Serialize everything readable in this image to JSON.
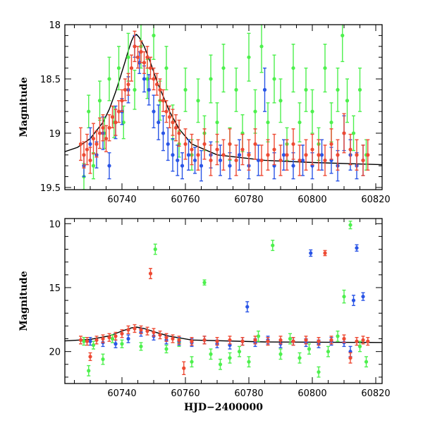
{
  "chart_data": [
    {
      "type": "scatter",
      "title": "",
      "xlabel": "",
      "ylabel": "Magnitude",
      "xlim": [
        60722,
        60822
      ],
      "ylim": [
        18.0,
        19.52
      ],
      "y_inverted": true,
      "grid": false,
      "xticks_major": [
        60740,
        60760,
        60780,
        60800,
        60820
      ],
      "xtick_labels": [
        "60740",
        "60760",
        "60780",
        "60800",
        "60820"
      ],
      "xticks_minor_step": 5,
      "yticks_major": [
        18,
        18.5,
        19,
        19.5
      ],
      "ytick_labels": [
        "18",
        "18.5",
        "19",
        "19.5"
      ],
      "yticks_minor_step": 0.1,
      "model_curve": {
        "color": "#000000",
        "x": [
          60722,
          60726,
          60730,
          60734,
          60736,
          60738,
          60739.5,
          60741,
          60742,
          60743,
          60743.8,
          60744.6,
          60745.5,
          60747,
          60749,
          60751,
          60753,
          60755,
          60758,
          60762,
          60770,
          60785,
          60800,
          60822
        ],
        "y": [
          19.17,
          19.13,
          19.05,
          18.9,
          18.78,
          18.62,
          18.48,
          18.34,
          18.24,
          18.15,
          18.1,
          18.09,
          18.12,
          18.2,
          18.35,
          18.52,
          18.66,
          18.8,
          18.96,
          19.1,
          19.2,
          19.25,
          19.27,
          19.29
        ]
      },
      "series": [
        {
          "color": "#4df04d",
          "x": [
            60728,
            60729.5,
            60731,
            60733,
            60734.5,
            60736,
            60737.5,
            60739,
            60740.5,
            60742,
            60744,
            60746,
            60748,
            60750,
            60752,
            60754,
            60756,
            60758,
            60760,
            60762,
            60764,
            60766,
            60768,
            60770,
            60772,
            60774,
            60776,
            60778,
            60780,
            60782,
            60784,
            60786,
            60788,
            60790,
            60792,
            60794,
            60796,
            60798,
            60800,
            60802,
            60804,
            60806,
            60808,
            60809.5,
            60811,
            60813,
            60815,
            60817
          ],
          "y": [
            19.4,
            18.8,
            19.3,
            18.7,
            19.0,
            18.5,
            18.9,
            18.4,
            18.9,
            18.3,
            18.6,
            18.2,
            18.5,
            18.1,
            18.7,
            18.4,
            18.9,
            19.1,
            18.6,
            19.2,
            18.7,
            19.0,
            18.5,
            18.9,
            18.4,
            19.1,
            18.6,
            19.0,
            18.3,
            18.8,
            18.2,
            18.9,
            18.5,
            18.7,
            19.1,
            18.4,
            18.9,
            18.6,
            18.8,
            19.1,
            18.4,
            18.9,
            18.6,
            18.1,
            18.7,
            19.0,
            18.6,
            19.2
          ],
          "yerr": [
            0.12,
            0.15,
            0.12,
            0.18,
            0.14,
            0.2,
            0.14,
            0.2,
            0.15,
            0.22,
            0.18,
            0.2,
            0.18,
            0.22,
            0.18,
            0.2,
            0.16,
            0.12,
            0.2,
            0.14,
            0.2,
            0.16,
            0.22,
            0.18,
            0.22,
            0.15,
            0.2,
            0.17,
            0.22,
            0.2,
            0.24,
            0.18,
            0.22,
            0.2,
            0.15,
            0.22,
            0.18,
            0.2,
            0.2,
            0.15,
            0.22,
            0.18,
            0.2,
            0.24,
            0.2,
            0.16,
            0.2,
            0.14
          ]
        },
        {
          "color": "#2a55e6",
          "x": [
            60728,
            60730,
            60732,
            60734,
            60736,
            60738,
            60740,
            60742,
            60744,
            60745.5,
            60747,
            60748.5,
            60750,
            60751.5,
            60753,
            60754.5,
            60756,
            60757.5,
            60759,
            60761,
            60763,
            60765,
            60768,
            60771,
            60774,
            60777,
            60780,
            60783,
            60785,
            60788,
            60791,
            60794,
            60797,
            60800,
            60803,
            60806,
            60808,
            60810,
            60812,
            60814,
            60816
          ],
          "y": [
            19.3,
            19.1,
            19.2,
            19.0,
            19.3,
            18.9,
            18.8,
            18.6,
            18.2,
            18.35,
            18.5,
            18.6,
            18.8,
            18.9,
            19.0,
            19.1,
            19.2,
            19.25,
            19.3,
            19.2,
            19.25,
            19.3,
            19.2,
            19.25,
            19.3,
            19.2,
            19.3,
            19.25,
            18.6,
            19.3,
            19.2,
            19.3,
            19.25,
            19.3,
            19.2,
            19.25,
            19.3,
            19.0,
            19.2,
            19.3,
            19.25
          ],
          "yerr": [
            0.1,
            0.15,
            0.12,
            0.15,
            0.12,
            0.15,
            0.12,
            0.12,
            0.1,
            0.1,
            0.12,
            0.14,
            0.15,
            0.16,
            0.16,
            0.15,
            0.15,
            0.14,
            0.12,
            0.14,
            0.12,
            0.14,
            0.12,
            0.14,
            0.12,
            0.14,
            0.12,
            0.14,
            0.2,
            0.12,
            0.14,
            0.12,
            0.14,
            0.12,
            0.14,
            0.12,
            0.14,
            0.16,
            0.14,
            0.12,
            0.14
          ]
        },
        {
          "color": "#ee4a33",
          "x": [
            60727,
            60728,
            60729,
            60730,
            60731,
            60732,
            60733,
            60734,
            60735,
            60736,
            60737,
            60738,
            60739,
            60740,
            60741,
            60742,
            60743,
            60744,
            60745,
            60746,
            60747,
            60748,
            60749,
            60750,
            60751,
            60752,
            60753,
            60754,
            60755,
            60756,
            60757,
            60758,
            60760,
            60762,
            60764,
            60766,
            60768,
            60770,
            60772,
            60774,
            60776,
            60778,
            60780,
            60782,
            60784,
            60786,
            60788,
            60790,
            60792,
            60794,
            60796,
            60798,
            60800,
            60802,
            60804,
            60806,
            60808,
            60810,
            60812,
            60814,
            60816,
            60817.5
          ],
          "y": [
            19.1,
            19.2,
            19.15,
            19.25,
            19.05,
            19.1,
            19.0,
            18.95,
            19.05,
            18.95,
            18.85,
            18.9,
            18.8,
            18.7,
            18.6,
            18.55,
            18.4,
            18.2,
            18.3,
            18.25,
            18.35,
            18.3,
            18.4,
            18.5,
            18.55,
            18.6,
            18.7,
            18.8,
            18.85,
            18.9,
            18.95,
            19.0,
            19.1,
            19.15,
            19.2,
            19.1,
            19.25,
            19.15,
            19.2,
            19.1,
            19.25,
            19.15,
            19.2,
            19.1,
            19.25,
            19.2,
            19.15,
            19.25,
            19.2,
            19.1,
            19.25,
            19.2,
            19.15,
            19.2,
            19.25,
            19.1,
            19.2,
            19.0,
            19.15,
            19.2,
            19.25,
            19.2
          ],
          "yerr": [
            0.15,
            0.12,
            0.14,
            0.12,
            0.14,
            0.12,
            0.14,
            0.12,
            0.12,
            0.12,
            0.1,
            0.12,
            0.1,
            0.1,
            0.1,
            0.1,
            0.12,
            0.14,
            0.1,
            0.1,
            0.1,
            0.1,
            0.1,
            0.1,
            0.1,
            0.1,
            0.1,
            0.1,
            0.1,
            0.12,
            0.12,
            0.12,
            0.14,
            0.14,
            0.14,
            0.14,
            0.14,
            0.14,
            0.14,
            0.14,
            0.14,
            0.14,
            0.14,
            0.14,
            0.14,
            0.14,
            0.14,
            0.14,
            0.14,
            0.14,
            0.14,
            0.14,
            0.14,
            0.14,
            0.14,
            0.14,
            0.14,
            0.18,
            0.14,
            0.14,
            0.14,
            0.14
          ]
        }
      ]
    },
    {
      "type": "scatter",
      "title": "",
      "xlabel": "HJD−2400000",
      "ylabel": "Magnitude",
      "xlim": [
        60722,
        60822
      ],
      "ylim": [
        9.6,
        22.5
      ],
      "y_inverted": true,
      "grid": false,
      "xticks_major": [
        60740,
        60760,
        60780,
        60800,
        60820
      ],
      "xtick_labels": [
        "60740",
        "60760",
        "60780",
        "60800",
        "60820"
      ],
      "xticks_minor_step": 5,
      "yticks_major": [
        10,
        15,
        20
      ],
      "ytick_labels": [
        "10",
        "15",
        "20"
      ],
      "yticks_minor_step": 1,
      "model_curve": {
        "color": "#000000",
        "x": [
          60722,
          60730,
          60736,
          60740,
          60743,
          60744.6,
          60747,
          60751,
          60755,
          60762,
          60785,
          60822
        ],
        "y": [
          19.17,
          19.05,
          18.78,
          18.4,
          18.15,
          18.09,
          18.2,
          18.52,
          18.8,
          19.1,
          19.25,
          19.29
        ]
      },
      "series": [
        {
          "color": "#4df04d",
          "x": [
            60728,
            60729.5,
            60731,
            60734,
            60737,
            60740,
            60746,
            60750.5,
            60754,
            60758,
            60762,
            60766,
            60768,
            60771,
            60774,
            60777,
            60780,
            60783,
            60787.5,
            60790,
            60793,
            60796,
            60799,
            60802,
            60805,
            60808,
            60810,
            60812,
            60815,
            60817
          ],
          "y": [
            19.2,
            21.5,
            19.5,
            20.6,
            19.0,
            19.4,
            19.6,
            12.0,
            19.8,
            19.3,
            20.8,
            14.6,
            20.2,
            21.0,
            20.5,
            20.0,
            20.8,
            18.8,
            11.7,
            20.2,
            19.0,
            20.5,
            19.8,
            21.6,
            20.0,
            18.8,
            15.7,
            10.1,
            19.6,
            20.8
          ],
          "yerr": [
            0.3,
            0.4,
            0.3,
            0.4,
            0.3,
            0.3,
            0.3,
            0.4,
            0.3,
            0.3,
            0.4,
            0.2,
            0.4,
            0.4,
            0.4,
            0.4,
            0.4,
            0.4,
            0.4,
            0.4,
            0.4,
            0.4,
            0.4,
            0.4,
            0.4,
            0.4,
            0.5,
            0.3,
            0.4,
            0.4
          ]
        },
        {
          "color": "#2a55e6",
          "x": [
            60730,
            60734,
            60738,
            60742,
            60746,
            60750,
            60754,
            60758,
            60762,
            60766,
            60770,
            60774,
            60778,
            60779.5,
            60782,
            60786,
            60790,
            60794,
            60798,
            60799.5,
            60802,
            60806,
            60810,
            60812,
            60813,
            60814,
            60816
          ],
          "y": [
            19.2,
            19.3,
            19.4,
            19.0,
            18.5,
            18.8,
            19.1,
            19.2,
            19.3,
            19.1,
            19.4,
            19.5,
            19.2,
            16.5,
            19.3,
            19.1,
            19.4,
            19.2,
            19.3,
            12.3,
            19.4,
            19.2,
            19.3,
            20.0,
            16.0,
            11.9,
            15.7
          ],
          "yerr": [
            0.3,
            0.3,
            0.3,
            0.3,
            0.3,
            0.3,
            0.3,
            0.3,
            0.3,
            0.3,
            0.3,
            0.3,
            0.3,
            0.4,
            0.3,
            0.3,
            0.3,
            0.3,
            0.3,
            0.25,
            0.3,
            0.3,
            0.3,
            0.4,
            0.4,
            0.25,
            0.3
          ]
        },
        {
          "color": "#ee4a33",
          "x": [
            60727,
            60729,
            60730,
            60732,
            60734,
            60736,
            60738,
            60740,
            60742,
            60744,
            60746,
            60748,
            60749,
            60750,
            60752,
            60754,
            60756,
            60758,
            60759.5,
            60762,
            60766,
            60770,
            60774,
            60778,
            60782,
            60786,
            60790,
            60794,
            60798,
            60802,
            60804,
            60806,
            60810,
            60812,
            60814,
            60816,
            60817.5
          ],
          "y": [
            19.1,
            19.2,
            20.4,
            19.1,
            19.0,
            18.9,
            18.8,
            18.6,
            18.3,
            18.2,
            18.3,
            18.4,
            13.9,
            18.5,
            18.7,
            18.9,
            19.0,
            19.1,
            21.3,
            19.2,
            19.1,
            19.2,
            19.1,
            19.2,
            19.1,
            19.2,
            19.1,
            19.2,
            19.1,
            19.2,
            12.3,
            19.1,
            19.0,
            20.5,
            19.2,
            19.1,
            19.2
          ],
          "yerr": [
            0.3,
            0.3,
            0.3,
            0.3,
            0.3,
            0.3,
            0.3,
            0.3,
            0.3,
            0.3,
            0.3,
            0.3,
            0.4,
            0.3,
            0.3,
            0.3,
            0.3,
            0.3,
            0.5,
            0.3,
            0.3,
            0.3,
            0.3,
            0.3,
            0.3,
            0.3,
            0.3,
            0.3,
            0.3,
            0.3,
            0.2,
            0.3,
            0.3,
            0.4,
            0.3,
            0.3,
            0.3
          ]
        }
      ]
    }
  ]
}
